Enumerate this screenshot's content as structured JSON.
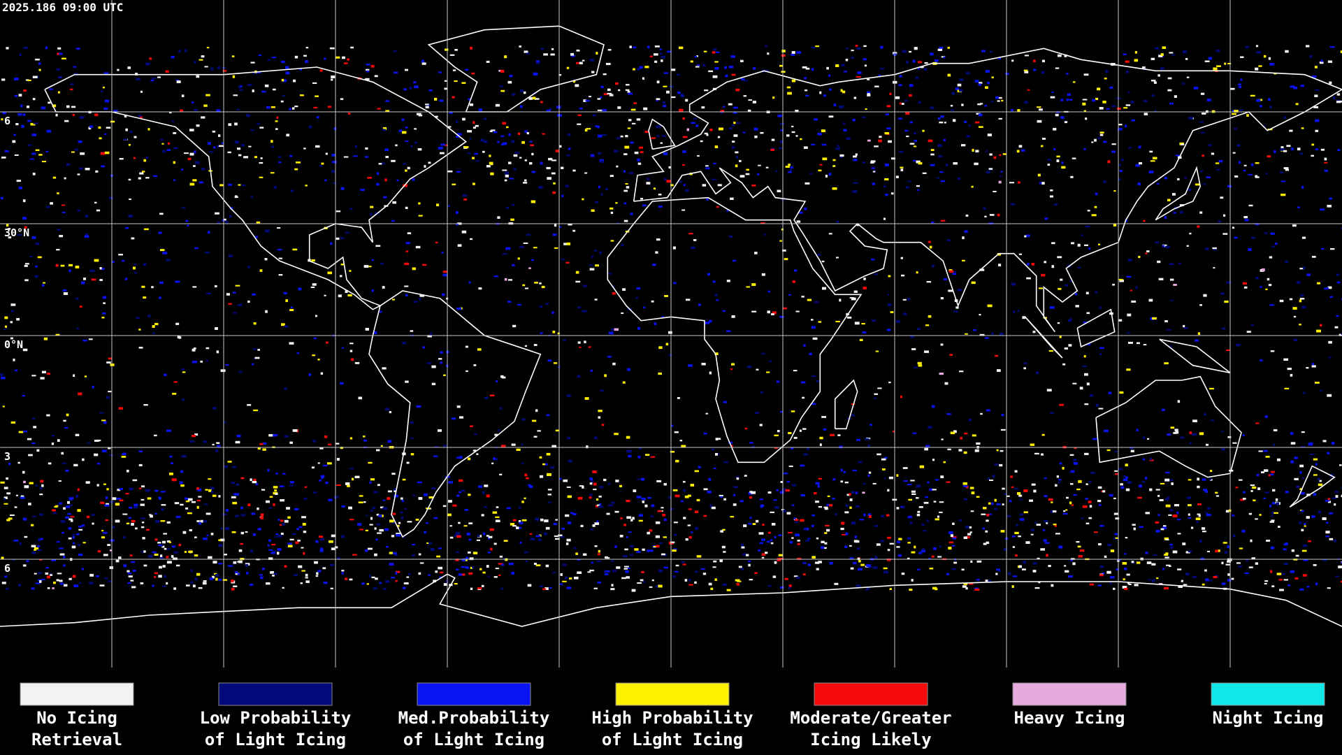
{
  "header": {
    "timestamp": "2025.186 09:00 UTC"
  },
  "map": {
    "lat_labels": [
      "6",
      "30°N",
      "0°N",
      "3",
      "6"
    ]
  },
  "legend": {
    "items": [
      {
        "lines": [
          "No Icing",
          "Retrieval"
        ],
        "color": "#f2f2f2"
      },
      {
        "lines": [
          "Low Probability",
          "of Light Icing"
        ],
        "color": "#000a78"
      },
      {
        "lines": [
          "Med.Probability",
          "of Light Icing"
        ],
        "color": "#0a14f0"
      },
      {
        "lines": [
          "High Probability",
          "of Light Icing"
        ],
        "color": "#fff000"
      },
      {
        "lines": [
          "Moderate/Greater",
          "Icing Likely"
        ],
        "color": "#f50a0a"
      },
      {
        "lines": [
          "Heavy Icing"
        ],
        "color": "#e8a8e0"
      },
      {
        "lines": [
          "Night Icing"
        ],
        "color": "#10e8e8"
      }
    ]
  }
}
